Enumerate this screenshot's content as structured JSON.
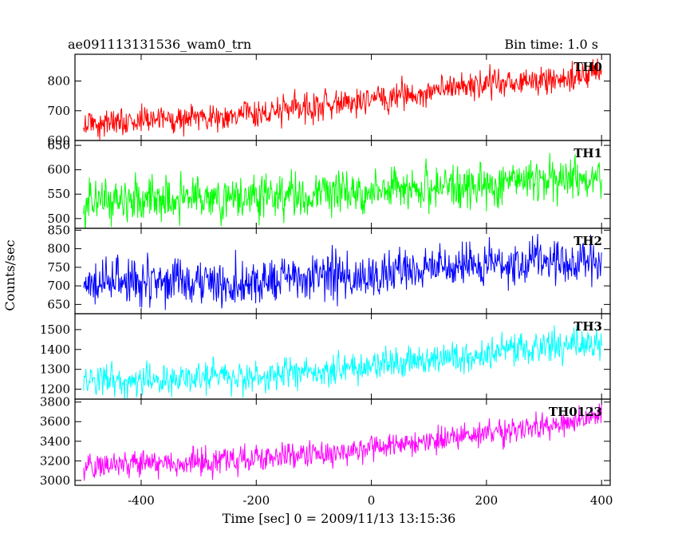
{
  "header": {
    "left_title": "ae091113131536_wam0_trn",
    "right_title": "Bin time: 1.0 s"
  },
  "axes": {
    "xlabel": "Time [sec] 0 = 2009/11/13 13:15:36",
    "ylabel": "Counts/sec",
    "xlim": [
      -515,
      415
    ],
    "xticks": [
      -400,
      -200,
      0,
      200,
      400
    ]
  },
  "chart_data": [
    {
      "type": "line",
      "name": "TH0",
      "color": "#ff0000",
      "x_range": [
        -500,
        400
      ],
      "trend": {
        "x": [
          -500,
          -200,
          0,
          200,
          400
        ],
        "y": [
          655,
          690,
          735,
          790,
          820
        ]
      },
      "noise_amplitude": 45,
      "ylim": [
        600,
        890
      ],
      "yticks": [
        600,
        700,
        800
      ]
    },
    {
      "type": "line",
      "name": "TH1",
      "color": "#00ff00",
      "x_range": [
        -500,
        400
      ],
      "trend": {
        "x": [
          -500,
          -200,
          0,
          200,
          400
        ],
        "y": [
          538,
          545,
          555,
          570,
          585
        ]
      },
      "noise_amplitude": 42,
      "ylim": [
        480,
        660
      ],
      "yticks": [
        500,
        550,
        600,
        650
      ]
    },
    {
      "type": "line",
      "name": "TH2",
      "color": "#0000ff",
      "x_range": [
        -500,
        400
      ],
      "trend": {
        "x": [
          -500,
          -200,
          0,
          200,
          400
        ],
        "y": [
          705,
          715,
          735,
          755,
          775
        ]
      },
      "noise_amplitude": 55,
      "ylim": [
        625,
        855
      ],
      "yticks": [
        650,
        700,
        750,
        800,
        850
      ]
    },
    {
      "type": "line",
      "name": "TH3",
      "color": "#00ffff",
      "x_range": [
        -500,
        400
      ],
      "trend": {
        "x": [
          -500,
          -200,
          0,
          200,
          400
        ],
        "y": [
          1240,
          1265,
          1315,
          1380,
          1440
        ]
      },
      "noise_amplitude": 75,
      "ylim": [
        1150,
        1580
      ],
      "yticks": [
        1200,
        1300,
        1400,
        1500
      ]
    },
    {
      "type": "line",
      "name": "TH0123",
      "color": "#ff00ff",
      "x_range": [
        -500,
        400
      ],
      "trend": {
        "x": [
          -500,
          -200,
          0,
          200,
          400
        ],
        "y": [
          3140,
          3220,
          3330,
          3480,
          3650
        ]
      },
      "noise_amplitude": 120,
      "ylim": [
        2950,
        3830
      ],
      "yticks": [
        3000,
        3200,
        3400,
        3600,
        3800
      ]
    }
  ]
}
